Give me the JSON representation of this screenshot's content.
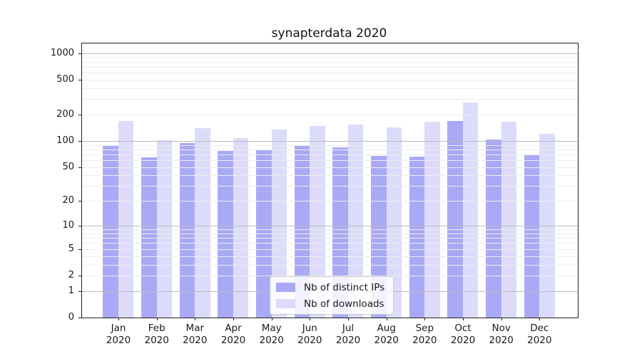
{
  "chart_data": {
    "type": "bar",
    "title": "synapterdata 2020",
    "categories": [
      "Jan 2020",
      "Feb 2020",
      "Mar 2020",
      "Apr 2020",
      "May 2020",
      "Jun 2020",
      "Jul 2020",
      "Aug 2020",
      "Sep 2020",
      "Oct 2020",
      "Nov 2020",
      "Dec 2020"
    ],
    "series": [
      {
        "name": "Nb of distinct IPs",
        "color": "#a9a9f6",
        "values": [
          88,
          65,
          95,
          77,
          80,
          90,
          84,
          67,
          66,
          170,
          104,
          69
        ]
      },
      {
        "name": "Nb of downloads",
        "color": "#dcdcfa",
        "values": [
          169,
          101,
          140,
          108,
          134,
          148,
          154,
          142,
          166,
          276,
          165,
          120
        ]
      }
    ],
    "yscale": "log1p",
    "ylim": [
      0,
      1290
    ],
    "yticks": [
      0,
      1,
      2,
      5,
      10,
      20,
      50,
      100,
      200,
      500,
      1000
    ],
    "grid": true,
    "legend_position": "lower center",
    "xlabel": "",
    "ylabel": ""
  },
  "colors": {
    "bar_distinct_ips": "#a9a9f6",
    "bar_downloads": "#dcdcfa",
    "major_gridline": "#bcbcbc",
    "minor_gridline": "#ececec",
    "axis_spine": "#222222",
    "text": "#1a1a1a",
    "legend_border": "#cccccc",
    "legend_background": "rgba(255,255,255,0.85)"
  }
}
